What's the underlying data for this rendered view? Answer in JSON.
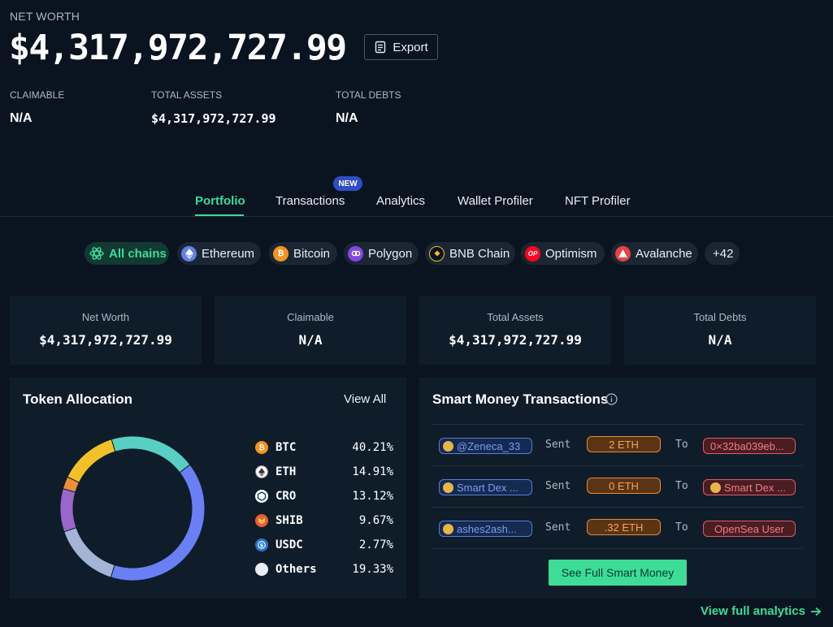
{
  "header": {
    "net_worth_label": "NET WORTH",
    "net_worth_value": "$4,317,972,727.99",
    "export_label": "Export"
  },
  "summary": [
    {
      "label": "CLAIMABLE",
      "value": "N/A"
    },
    {
      "label": "TOTAL ASSETS",
      "value": "$4,317,972,727.99"
    },
    {
      "label": "TOTAL DEBTS",
      "value": "N/A"
    }
  ],
  "tabs": [
    {
      "label": "Portfolio",
      "active": true
    },
    {
      "label": "Transactions",
      "badge": "NEW"
    },
    {
      "label": "Analytics"
    },
    {
      "label": "Wallet Profiler"
    },
    {
      "label": "NFT Profiler"
    }
  ],
  "chains": [
    {
      "label": "All chains",
      "icon": "all-chains-icon",
      "active": true
    },
    {
      "label": "Ethereum",
      "icon": "ethereum-icon",
      "color": "#627eea"
    },
    {
      "label": "Bitcoin",
      "icon": "bitcoin-icon",
      "color": "#f7931a"
    },
    {
      "label": "Polygon",
      "icon": "polygon-icon",
      "color": "#8247e5"
    },
    {
      "label": "BNB Chain",
      "icon": "bnb-icon",
      "color": "#f3ba2f"
    },
    {
      "label": "Optimism",
      "icon": "optimism-icon",
      "icon_text": "OP",
      "color": "#ff0420"
    },
    {
      "label": "Avalanche",
      "icon": "avalanche-icon",
      "color": "#e84142"
    },
    {
      "label": "+42"
    }
  ],
  "stats": [
    {
      "label": "Net Worth",
      "value": "$4,317,972,727.99"
    },
    {
      "label": "Claimable",
      "value": "N/A"
    },
    {
      "label": "Total Assets",
      "value": "$4,317,972,727.99"
    },
    {
      "label": "Total Debts",
      "value": "N/A"
    }
  ],
  "token_allocation": {
    "title": "Token Allocation",
    "view_all": "View All",
    "tokens": [
      {
        "symbol": "BTC",
        "percent": "40.21%",
        "icon": "bitcoin-icon",
        "color": "#f7931a"
      },
      {
        "symbol": "ETH",
        "percent": "14.91%",
        "icon": "ethereum-icon",
        "color": "#ffffff"
      },
      {
        "symbol": "CRO",
        "percent": "13.12%",
        "icon": "cronos-icon",
        "color": "#ffffff"
      },
      {
        "symbol": "SHIB",
        "percent": "9.67%",
        "icon": "shiba-icon",
        "color": "#e8602c"
      },
      {
        "symbol": "USDC",
        "percent": "2.77%",
        "icon": "usdc-icon",
        "color": "#2775ca"
      },
      {
        "symbol": "Others",
        "percent": "19.33%",
        "icon": "others-icon",
        "color": "#e8eef4"
      }
    ],
    "chart_segments": [
      {
        "name": "BTC",
        "value": 40.21,
        "color": "#6b7ff5"
      },
      {
        "name": "ETH",
        "value": 14.91,
        "color": "#a3b4d6"
      },
      {
        "name": "SHIB",
        "value": 9.67,
        "color": "#9966cc"
      },
      {
        "name": "USDC",
        "value": 2.77,
        "color": "#ef8d3a"
      },
      {
        "name": "CRO",
        "value": 13.12,
        "color": "#f2c128"
      },
      {
        "name": "Others",
        "value": 19.33,
        "color": "#57cfc3"
      }
    ]
  },
  "smart_money": {
    "title": "Smart Money Transactions",
    "sent_label": "Sent",
    "to_label": "To",
    "rows": [
      {
        "from": "@Zeneca_33",
        "amount": "2 ETH",
        "to": "0×32ba039eb...",
        "to_avatar": false
      },
      {
        "from": "Smart Dex ...",
        "amount": "0 ETH",
        "to": "Smart Dex ...",
        "to_avatar": true
      },
      {
        "from": "ashes2ash...",
        "amount": ".32 ETH",
        "to": "OpenSea User",
        "to_avatar": false
      }
    ],
    "cta": "See Full Smart Money"
  },
  "footer": {
    "view_full": "View full analytics"
  }
}
